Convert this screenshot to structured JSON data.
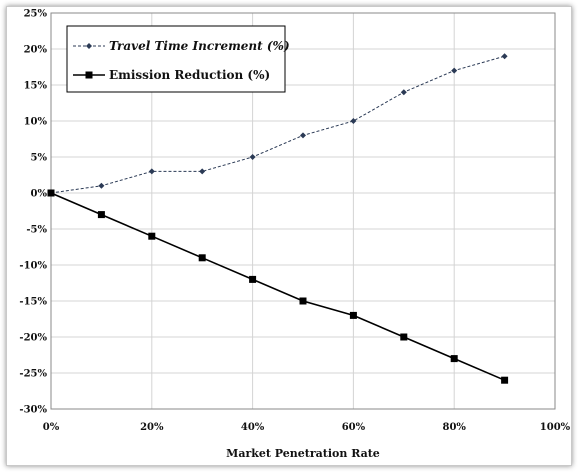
{
  "chart_data": {
    "type": "line",
    "title": "",
    "xlabel": "Market Penetration Rate",
    "ylabel": "",
    "x": [
      0,
      10,
      20,
      30,
      40,
      50,
      60,
      70,
      80,
      90
    ],
    "xlim": [
      0,
      100
    ],
    "ylim": [
      -30,
      25
    ],
    "x_ticks": [
      {
        "value": 0,
        "label": "0%"
      },
      {
        "value": 20,
        "label": "20%"
      },
      {
        "value": 40,
        "label": "40%"
      },
      {
        "value": 60,
        "label": "60%"
      },
      {
        "value": 80,
        "label": "80%"
      },
      {
        "value": 100,
        "label": "100%"
      }
    ],
    "y_ticks": [
      {
        "value": 25,
        "label": "25%"
      },
      {
        "value": 20,
        "label": "20%"
      },
      {
        "value": 15,
        "label": "15%"
      },
      {
        "value": 10,
        "label": "10%"
      },
      {
        "value": 5,
        "label": "5%"
      },
      {
        "value": 0,
        "label": "0%"
      },
      {
        "value": -5,
        "label": "-5%"
      },
      {
        "value": -10,
        "label": "-10%"
      },
      {
        "value": -15,
        "label": "-15%"
      },
      {
        "value": -20,
        "label": "-20%"
      },
      {
        "value": -25,
        "label": "-25%"
      },
      {
        "value": -30,
        "label": "-30%"
      }
    ],
    "grid": true,
    "legend_position": "top-left",
    "series": [
      {
        "name": "Travel Time Increment (%)",
        "values": [
          0,
          1,
          3,
          3,
          5,
          8,
          10,
          14,
          17,
          19
        ],
        "marker": "diamond",
        "line_style": "dashed",
        "color": "#2b3a55"
      },
      {
        "name": "Emission Reduction (%)",
        "values": [
          0,
          -3,
          -6,
          -9,
          -12,
          -15,
          -17,
          -20,
          -23,
          -26
        ],
        "marker": "square",
        "line_style": "solid",
        "color": "#000000"
      }
    ]
  }
}
